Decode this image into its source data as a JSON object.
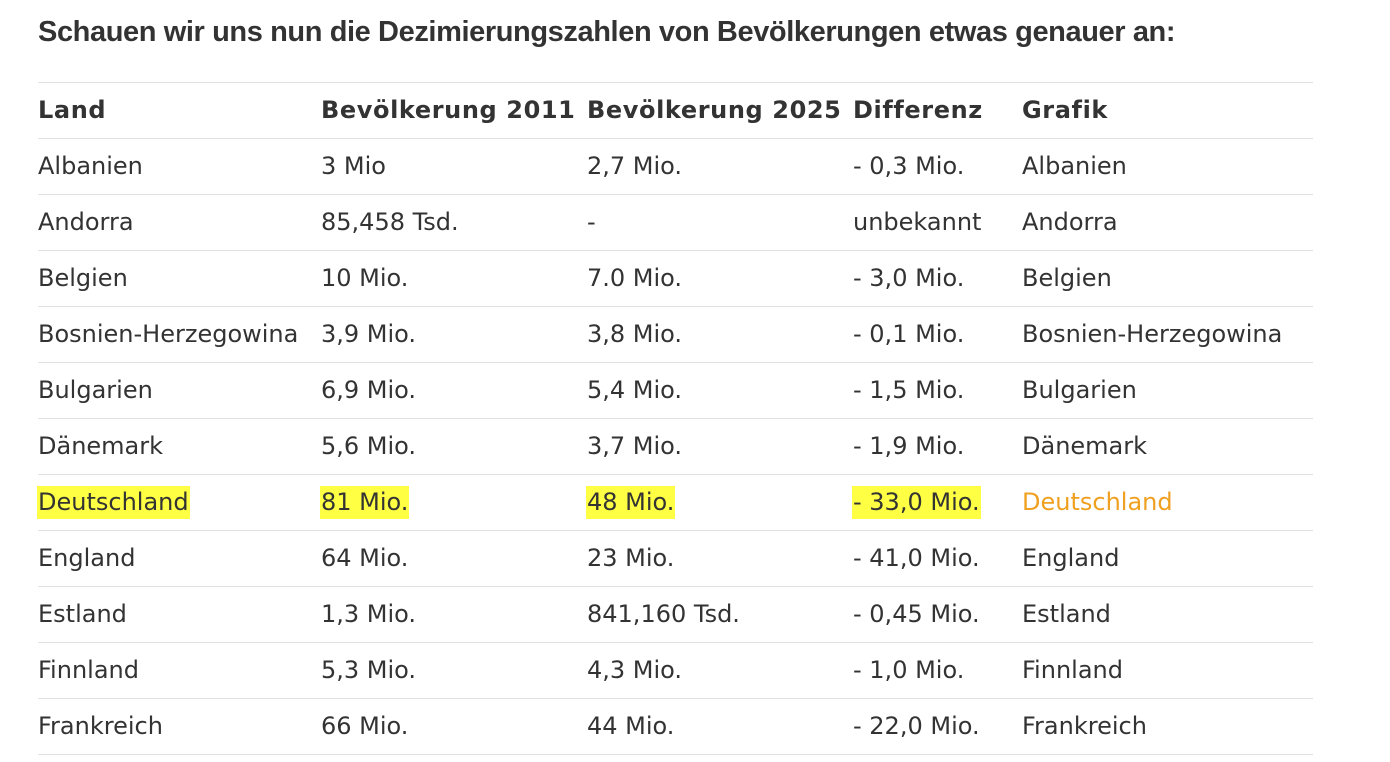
{
  "heading": "Schauen wir uns nun die Dezimierungszahlen von Bevölkerungen etwas genauer an:",
  "colors": {
    "highlight": "#ffff44",
    "link": "#f0a020",
    "text": "#333333",
    "rule": "#e2e2e2"
  },
  "table": {
    "headers": [
      "Land",
      "Bevölkerung 2011",
      "Bevölkerung 2025",
      "Differenz",
      "Grafik"
    ],
    "rows": [
      {
        "cells": [
          "Albanien",
          "3 Mio",
          "2,7 Mio.",
          "- 0,3 Mio.",
          " Albanien"
        ]
      },
      {
        "cells": [
          "Andorra",
          "85,458 Tsd.",
          "-",
          "unbekannt",
          " Andorra"
        ]
      },
      {
        "cells": [
          "Belgien",
          "10 Mio.",
          "7.0 Mio.",
          "- 3,0 Mio.",
          " Belgien"
        ]
      },
      {
        "cells": [
          "Bosnien-Herzegowina",
          "3,9 Mio.",
          "3,8 Mio.",
          "- 0,1 Mio.",
          " Bosnien-Herzegowina"
        ]
      },
      {
        "cells": [
          "Bulgarien",
          " 6,9 Mio.",
          " 5,4 Mio.",
          "- 1,5 Mio.",
          " Bulgarien"
        ]
      },
      {
        "cells": [
          "Dänemark",
          " 5,6 Mio.",
          "3,7 Mio.",
          "- 1,9 Mio.",
          " Dänemark"
        ]
      },
      {
        "cells": [
          "Deutschland",
          " 81 Mio.",
          "48 Mio.",
          "- 33,0 Mio.",
          "Deutschland"
        ]
      },
      {
        "cells": [
          "England",
          " 64 Mio.",
          "23 Mio.",
          "- 41,0 Mio.",
          " England"
        ]
      },
      {
        "cells": [
          "Estland",
          " 1,3 Mio.",
          "841,160 Tsd.",
          "- 0,45 Mio.",
          " Estland"
        ]
      },
      {
        "cells": [
          "Finnland",
          " 5,3 Mio.",
          "4,3 Mio.",
          "- 1,0 Mio.",
          " Finnland"
        ]
      },
      {
        "cells": [
          "Frankreich",
          " 66 Mio.",
          "44 Mio.",
          "- 22,0 Mio.",
          " Frankreich"
        ]
      }
    ]
  }
}
